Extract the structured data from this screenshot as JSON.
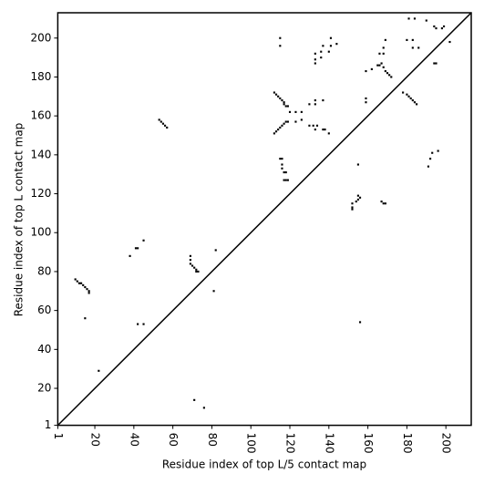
{
  "chart_data": {
    "type": "scatter",
    "xlabel": "Residue index of top L/5 contact map",
    "ylabel": "Residue index of top L contact map",
    "xlim": [
      1,
      213
    ],
    "ylim": [
      1,
      213
    ],
    "xticks": [
      1,
      20,
      40,
      60,
      80,
      100,
      120,
      140,
      160,
      180,
      200
    ],
    "yticks": [
      1,
      20,
      40,
      60,
      80,
      100,
      120,
      140,
      160,
      180,
      200
    ],
    "diagonal": true,
    "series": [
      {
        "color": "#000000",
        "x": [
          10,
          11,
          12,
          13,
          14,
          15,
          16,
          17,
          17,
          15,
          22,
          38,
          41,
          42,
          45,
          42,
          45,
          53,
          54,
          55,
          56,
          57,
          69,
          69,
          69,
          70,
          71,
          72,
          72,
          73,
          82,
          81,
          71,
          76,
          112,
          113,
          114,
          115,
          116,
          117,
          117,
          118,
          119,
          115,
          115,
          112,
          113,
          114,
          115,
          116,
          117,
          118,
          119,
          115,
          116,
          116,
          116,
          117,
          118,
          117,
          118,
          119,
          120,
          123,
          126,
          123,
          126,
          130,
          133,
          133,
          137,
          130,
          132,
          133,
          134,
          137,
          138,
          140,
          133,
          133,
          133,
          136,
          136,
          137,
          141,
          141,
          140,
          144,
          152,
          152,
          152,
          154,
          155,
          156,
          155,
          155,
          156,
          159,
          159,
          159,
          162,
          165,
          166,
          166,
          167,
          168,
          169,
          170,
          171,
          172,
          168,
          168,
          169,
          167,
          168,
          169,
          178,
          180,
          181,
          182,
          183,
          184,
          185,
          180,
          183,
          183,
          186,
          181,
          184,
          190,
          194,
          195,
          198,
          199,
          202,
          194,
          195,
          191,
          192,
          193,
          196
        ],
        "y": [
          76,
          75,
          74,
          74,
          73,
          72,
          71,
          70,
          69,
          56,
          29,
          88,
          92,
          92,
          96,
          53,
          53,
          158,
          157,
          156,
          155,
          154,
          88,
          86,
          84,
          83,
          82,
          81,
          80,
          80,
          91,
          70,
          14,
          10,
          172,
          171,
          170,
          169,
          168,
          167,
          166,
          165,
          165,
          200,
          196,
          151,
          152,
          153,
          154,
          155,
          156,
          157,
          157,
          138,
          138,
          135,
          133,
          131,
          131,
          127,
          127,
          127,
          162,
          162,
          162,
          157,
          158,
          166,
          166,
          168,
          168,
          155,
          155,
          153,
          155,
          153,
          153,
          151,
          187,
          189,
          192,
          190,
          193,
          196,
          196,
          200,
          193,
          197,
          112,
          113,
          115,
          116,
          117,
          118,
          119,
          135,
          54,
          167,
          169,
          183,
          184,
          186,
          186,
          192,
          187,
          185,
          183,
          182,
          181,
          180,
          192,
          195,
          199,
          116,
          115,
          115,
          172,
          171,
          170,
          169,
          168,
          167,
          166,
          199,
          199,
          195,
          195,
          210,
          210,
          209,
          206,
          205,
          205,
          206,
          198,
          187,
          187,
          134,
          138,
          141,
          142
        ]
      }
    ]
  }
}
